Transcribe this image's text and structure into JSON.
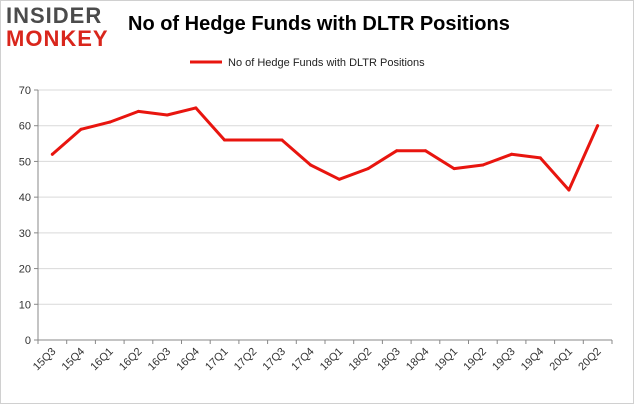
{
  "logo": {
    "line1": "INSIDER",
    "line2": "MONKEY"
  },
  "chart_data": {
    "type": "line",
    "title": "No of Hedge Funds with DLTR Positions",
    "xlabel": "",
    "ylabel": "",
    "ylim": [
      0,
      70
    ],
    "yticks": [
      0,
      10,
      20,
      30,
      40,
      50,
      60,
      70
    ],
    "grid": true,
    "legend_position": "top-center",
    "categories": [
      "15Q3",
      "15Q4",
      "16Q1",
      "16Q2",
      "16Q3",
      "16Q4",
      "17Q1",
      "17Q2",
      "17Q3",
      "17Q4",
      "18Q1",
      "18Q2",
      "18Q3",
      "18Q4",
      "19Q1",
      "19Q2",
      "19Q3",
      "19Q4",
      "20Q1",
      "20Q2"
    ],
    "series": [
      {
        "name": "No of Hedge Funds with DLTR Positions",
        "color": "#e8150f",
        "values": [
          52,
          59,
          61,
          64,
          63,
          65,
          56,
          56,
          56,
          49,
          45,
          48,
          53,
          53,
          48,
          49,
          52,
          51,
          42,
          60
        ]
      }
    ]
  }
}
